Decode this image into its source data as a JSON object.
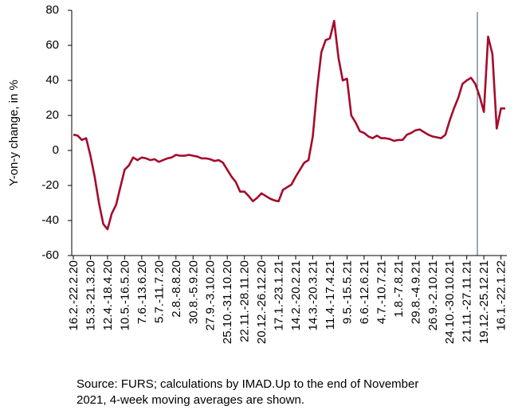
{
  "chart_data": {
    "type": "line",
    "y_label": "Y-on-y change, in %",
    "source": [
      "Source: FURS; calculations by IMAD.Up to the end of November",
      "2021, 4-week moving averages are shown."
    ],
    "categories": [
      "16.2.-22.2.20",
      null,
      null,
      null,
      "15.3.-21.3.20",
      null,
      null,
      null,
      "12.4.-18.4.20",
      null,
      null,
      null,
      "10.5.-16.5.20",
      null,
      null,
      null,
      "7.6.-13.6.20",
      null,
      null,
      null,
      "5.7.-11.7.20",
      null,
      null,
      null,
      "2.8.-8.8.20",
      null,
      null,
      null,
      "30.8.-5.9.20",
      null,
      null,
      null,
      "27.9.-3.10.20",
      null,
      null,
      null,
      "25.10.-31.10.20",
      null,
      null,
      null,
      "22.11.-28.11.20",
      null,
      null,
      null,
      "20.12.-26.12.20",
      null,
      null,
      null,
      "17.1.-23.1.21",
      null,
      null,
      null,
      "14.2.-20.2.21",
      null,
      null,
      null,
      "14.3.-20.3.21",
      null,
      null,
      null,
      "11.4.-17.4.21",
      null,
      null,
      null,
      "9.5.-15.5.21",
      null,
      null,
      null,
      "6.6.-12.6.21",
      null,
      null,
      null,
      "4.7.-10.7.21",
      null,
      null,
      null,
      "1.8.-7.8.21",
      null,
      null,
      null,
      "29.8.-4.9.21",
      null,
      null,
      null,
      "26.9.-2.10.21",
      null,
      null,
      null,
      "24.10.-30.10.21",
      null,
      null,
      null,
      "21.11.-27.11.21",
      null,
      null,
      null,
      "19.12.-25.12.21",
      null,
      null,
      null,
      "16.1.-22.1.22",
      null
    ],
    "series": [
      {
        "name": "Y-on-y change",
        "color": "#a50b2c",
        "values": [
          9,
          8.5,
          6,
          7,
          -3,
          -15,
          -30,
          -42,
          -45,
          -36,
          -31,
          -21,
          -11,
          -8.5,
          -4,
          -5.5,
          -4,
          -4.5,
          -5.5,
          -5,
          -6.5,
          -5.5,
          -4.5,
          -4,
          -2.5,
          -3,
          -3,
          -2.5,
          -3,
          -3.5,
          -4.5,
          -4.5,
          -5,
          -6,
          -5.5,
          -7,
          -11,
          -15,
          -18,
          -23.5,
          -23.5,
          -26,
          -29,
          -27,
          -24.5,
          -26,
          -27.5,
          -28.5,
          -29,
          -22.5,
          -21,
          -19.5,
          -15,
          -11,
          -7,
          -5.5,
          8,
          35,
          56,
          63,
          64,
          74,
          53,
          40,
          41,
          20,
          16,
          11,
          10,
          8,
          7,
          8.5,
          7,
          7,
          6.5,
          5.5,
          6,
          6,
          9,
          10,
          11.5,
          12,
          10.5,
          9,
          8,
          7.5,
          7,
          9,
          17,
          24,
          30,
          38,
          40,
          41.5,
          38,
          31,
          22,
          65,
          55,
          12.5,
          24,
          24
        ]
      }
    ],
    "ylim": [
      -60,
      80
    ],
    "yticks": [
      -60,
      -40,
      -20,
      0,
      20,
      40,
      60,
      80
    ],
    "grid": false
  }
}
